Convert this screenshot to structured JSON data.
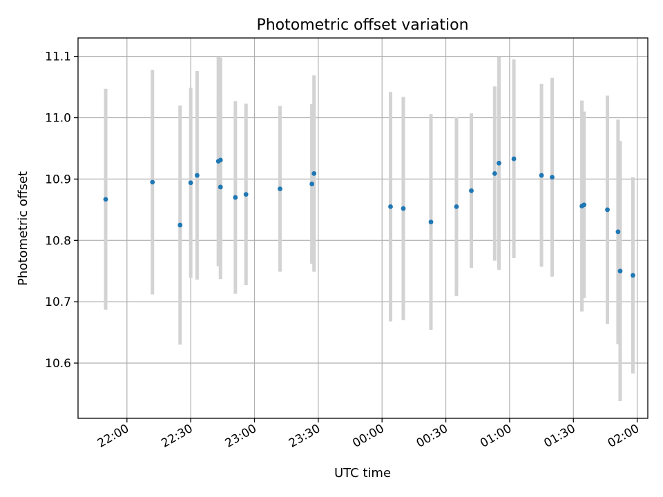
{
  "chart_data": {
    "type": "scatter",
    "title": "Photometric offset variation",
    "xlabel": "UTC time",
    "ylabel": "Photometric offset",
    "grid": true,
    "colors": {
      "points": "#1f77b4",
      "errorbars": "#d3d3d3"
    },
    "xlim": [
      "21:37",
      "02:05"
    ],
    "ylim": [
      10.51,
      11.13
    ],
    "xticks": [
      "22:00",
      "22:30",
      "23:00",
      "23:30",
      "00:00",
      "00:30",
      "01:00",
      "01:30",
      "02:00"
    ],
    "yticks": [
      "10.6",
      "10.7",
      "10.8",
      "10.9",
      "11.0",
      "11.1"
    ],
    "series": [
      {
        "x": [
          "21:50",
          "22:12",
          "22:25",
          "22:30",
          "22:33",
          "22:43",
          "22:44",
          "22:44",
          "22:51",
          "22:56",
          "23:12",
          "23:27",
          "23:28",
          "00:04",
          "00:10",
          "00:23",
          "00:35",
          "00:42",
          "00:53",
          "00:55",
          "01:02",
          "01:15",
          "01:20",
          "01:34",
          "01:35",
          "01:46",
          "01:51",
          "01:52",
          "01:58"
        ],
        "y": [
          10.867,
          10.895,
          10.825,
          10.894,
          10.906,
          10.929,
          10.931,
          10.887,
          10.87,
          10.875,
          10.884,
          10.892,
          10.909,
          10.855,
          10.852,
          10.83,
          10.855,
          10.881,
          10.909,
          10.926,
          10.933,
          10.906,
          10.903,
          10.856,
          10.858,
          10.85,
          10.814,
          10.75,
          10.743
        ],
        "err": [
          0.18,
          0.183,
          0.195,
          0.155,
          0.17,
          0.171,
          0.167,
          0.15,
          0.157,
          0.148,
          0.135,
          0.13,
          0.16,
          0.187,
          0.182,
          0.176,
          0.146,
          0.126,
          0.142,
          0.174,
          0.162,
          0.149,
          0.162,
          0.172,
          0.152,
          0.186,
          0.183,
          0.212,
          0.16
        ]
      }
    ]
  }
}
